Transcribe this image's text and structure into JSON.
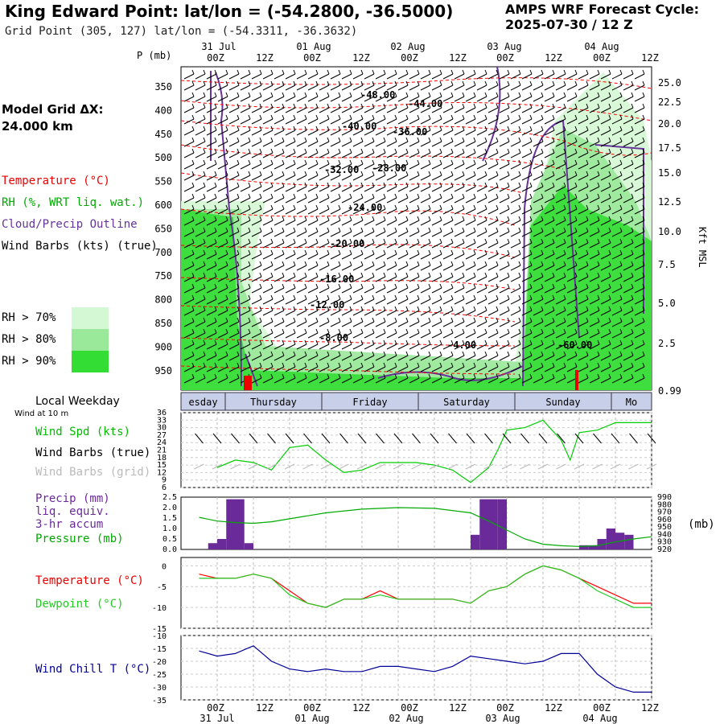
{
  "header": {
    "title": "King Edward Point:  lat/lon = (-54.2800, -36.5000)",
    "grid_point": "Grid Point (305, 127) lat/lon = (-54.3311, -36.3632)",
    "cycle_line1": "AMPS WRF Forecast Cycle:",
    "cycle_line2": "2025-07-30 / 12  Z"
  },
  "left_panel": {
    "model_grid_label": "Model Grid ΔX:",
    "model_grid_value": " 24.000 km",
    "temperature_legend": "Temperature (°C)",
    "rh_legend": "RH (%, WRT liq. wat.)",
    "cloud_legend": "Cloud/Precip Outline",
    "wind_legend": "Wind Barbs (kts) (true)",
    "rh_70": "RH > 70%",
    "rh_80": "RH > 80%",
    "rh_90": "RH > 90%",
    "p_mb": "P (mb)",
    "kft": "Kft MSL"
  },
  "colors": {
    "rh70": "#d4f7d4",
    "rh80": "#9ae89a",
    "rh90": "#33dd33",
    "temp": "#ff0000",
    "cloud": "#663399",
    "wind_spd": "#00cc00",
    "pressure": "#00aa00",
    "precip": "#6a2a9a",
    "windchill": "#000099",
    "dewpoint": "#22cc22",
    "grid_barb": "#bbbbbb"
  },
  "chart_data": [
    {
      "type": "heatmap",
      "name": "time-height cross-section",
      "x_labels_top_dates": [
        "31 Jul",
        "01 Aug",
        "02 Aug",
        "03 Aug",
        "04 Aug"
      ],
      "x_labels_times": [
        "00Z",
        "12Z",
        "00Z",
        "12Z",
        "00Z",
        "12Z",
        "00Z",
        "12Z",
        "00Z",
        "12Z"
      ],
      "pressure_ticks": [
        "350",
        "400",
        "450",
        "500",
        "550",
        "600",
        "650",
        "700",
        "750",
        "800",
        "850",
        "900",
        "950"
      ],
      "height_ticks": [
        "25.0",
        "22.5",
        "20.0",
        "17.5",
        "15.0",
        "12.5",
        "10.0",
        "7.5",
        "5.0",
        "2.5",
        "0.99"
      ],
      "temperature_labels": [
        "-48.00",
        "-44.00",
        "-40.00",
        "-36.00",
        "-32.00",
        "-28.00",
        "-24.00",
        "-20.00",
        "-16.00",
        "-12.00",
        "-8.00",
        "-4.00",
        "-60.00"
      ]
    },
    {
      "type": "line",
      "name": "wind",
      "title_left": "Local Weekday",
      "subtitle_left": "Wind at 10 m",
      "weekdays": [
        "esday",
        "Thursday",
        "Friday",
        "Saturday",
        "Sunday",
        "Mo"
      ],
      "legend": [
        "Wind Spd (kts)",
        "Wind Barbs (true)",
        "Wind Barbs (grid)"
      ],
      "y_ticks": [
        "36",
        "33",
        "30",
        "27",
        "24",
        "21",
        "18",
        "15",
        "12",
        "9",
        "6"
      ],
      "ylim": [
        6,
        36
      ],
      "x_hours": [
        0,
        6,
        12,
        18,
        24,
        30,
        36,
        42,
        48,
        54,
        60,
        66,
        72,
        78,
        84,
        90,
        93,
        96,
        102,
        108,
        114,
        117,
        120,
        126,
        132,
        138,
        144
      ],
      "wind_speed": [
        14,
        17,
        16,
        13,
        22,
        23,
        17,
        12,
        13,
        16,
        16,
        16,
        15,
        13,
        8,
        14,
        21,
        29,
        30,
        33,
        25,
        17,
        28,
        29,
        32,
        32,
        32
      ]
    },
    {
      "type": "bar",
      "name": "precip-pressure",
      "legend": [
        "Precip (mm)",
        "liq. equiv.",
        "3-hr accum",
        "Pressure (mb)"
      ],
      "precip_ticks": [
        "2.5",
        "2.0",
        "1.5",
        "1.0",
        "0.5",
        "0.0"
      ],
      "pressure_ticks": [
        "990",
        "980",
        "970",
        "960",
        "950",
        "940",
        "930",
        "920"
      ],
      "pressure_unit": "(mb)",
      "precip_hours": [
        -3,
        0,
        3,
        6,
        9,
        84,
        87,
        90,
        93,
        120,
        123,
        126,
        129,
        132,
        135
      ],
      "precip_values": [
        0.3,
        0.5,
        2.4,
        2.4,
        0.3,
        0.7,
        2.4,
        2.4,
        2.4,
        0.2,
        0.2,
        0.5,
        1.0,
        0.8,
        0.7
      ],
      "pressure_hours": [
        -6,
        0,
        6,
        12,
        18,
        24,
        36,
        48,
        60,
        72,
        84,
        90,
        96,
        102,
        108,
        114,
        120,
        126,
        132,
        138,
        144
      ],
      "pressure_values": [
        963,
        958,
        956,
        955,
        957,
        961,
        969,
        974,
        976,
        975,
        969,
        958,
        946,
        934,
        927,
        925,
        924,
        925,
        930,
        934,
        937
      ],
      "pressure_ylim": [
        920,
        990
      ],
      "precip_ylim": [
        0,
        2.5
      ]
    },
    {
      "type": "line",
      "name": "temperature-dewpoint",
      "legend": [
        "Temperature (°C)",
        "Dewpoint (°C)"
      ],
      "y_ticks": [
        "0",
        "-5",
        "-10",
        "-15"
      ],
      "ylim": [
        -15,
        2
      ],
      "x_hours": [
        -6,
        0,
        6,
        12,
        18,
        24,
        30,
        36,
        42,
        48,
        54,
        60,
        66,
        72,
        78,
        84,
        90,
        96,
        102,
        108,
        114,
        120,
        126,
        132,
        138,
        144
      ],
      "temperature": [
        -2,
        -3,
        -3,
        -2,
        -3,
        -6,
        -9,
        -10,
        -8,
        -8,
        -6,
        -8,
        -8,
        -8,
        -8,
        -9,
        -6,
        -5,
        -2,
        0,
        -1,
        -3,
        -5,
        -7,
        -9,
        -9
      ],
      "dewpoint": [
        -3,
        -3,
        -3,
        -2,
        -3,
        -7,
        -9,
        -10,
        -8,
        -8,
        -7,
        -8,
        -8,
        -8,
        -8,
        -9,
        -6,
        -5,
        -2,
        0,
        -1,
        -3,
        -6,
        -8,
        -10,
        -10
      ]
    },
    {
      "type": "line",
      "name": "wind-chill",
      "legend": [
        "Wind Chill T (°C)"
      ],
      "y_ticks": [
        "-10",
        "-15",
        "-20",
        "-25",
        "-30",
        "-35"
      ],
      "ylim": [
        -35,
        -10
      ],
      "x_hours": [
        -6,
        0,
        6,
        12,
        18,
        24,
        30,
        36,
        42,
        48,
        54,
        60,
        66,
        72,
        78,
        84,
        90,
        96,
        102,
        108,
        114,
        120,
        126,
        132,
        138,
        144
      ],
      "wind_chill": [
        -16,
        -18,
        -17,
        -14,
        -20,
        -23,
        -24,
        -23,
        -24,
        -24,
        -22,
        -22,
        -23,
        -24,
        -22,
        -18,
        -19,
        -20,
        -21,
        -20,
        -17,
        -17,
        -25,
        -30,
        -32,
        -32
      ],
      "x_labels_bottom_times": [
        "00Z",
        "12Z",
        "00Z",
        "12Z",
        "00Z",
        "12Z",
        "00Z",
        "12Z",
        "00Z",
        "12Z"
      ],
      "x_labels_bottom_dates": [
        "31 Jul",
        "01 Aug",
        "02 Aug",
        "03 Aug",
        "04 Aug"
      ]
    }
  ]
}
